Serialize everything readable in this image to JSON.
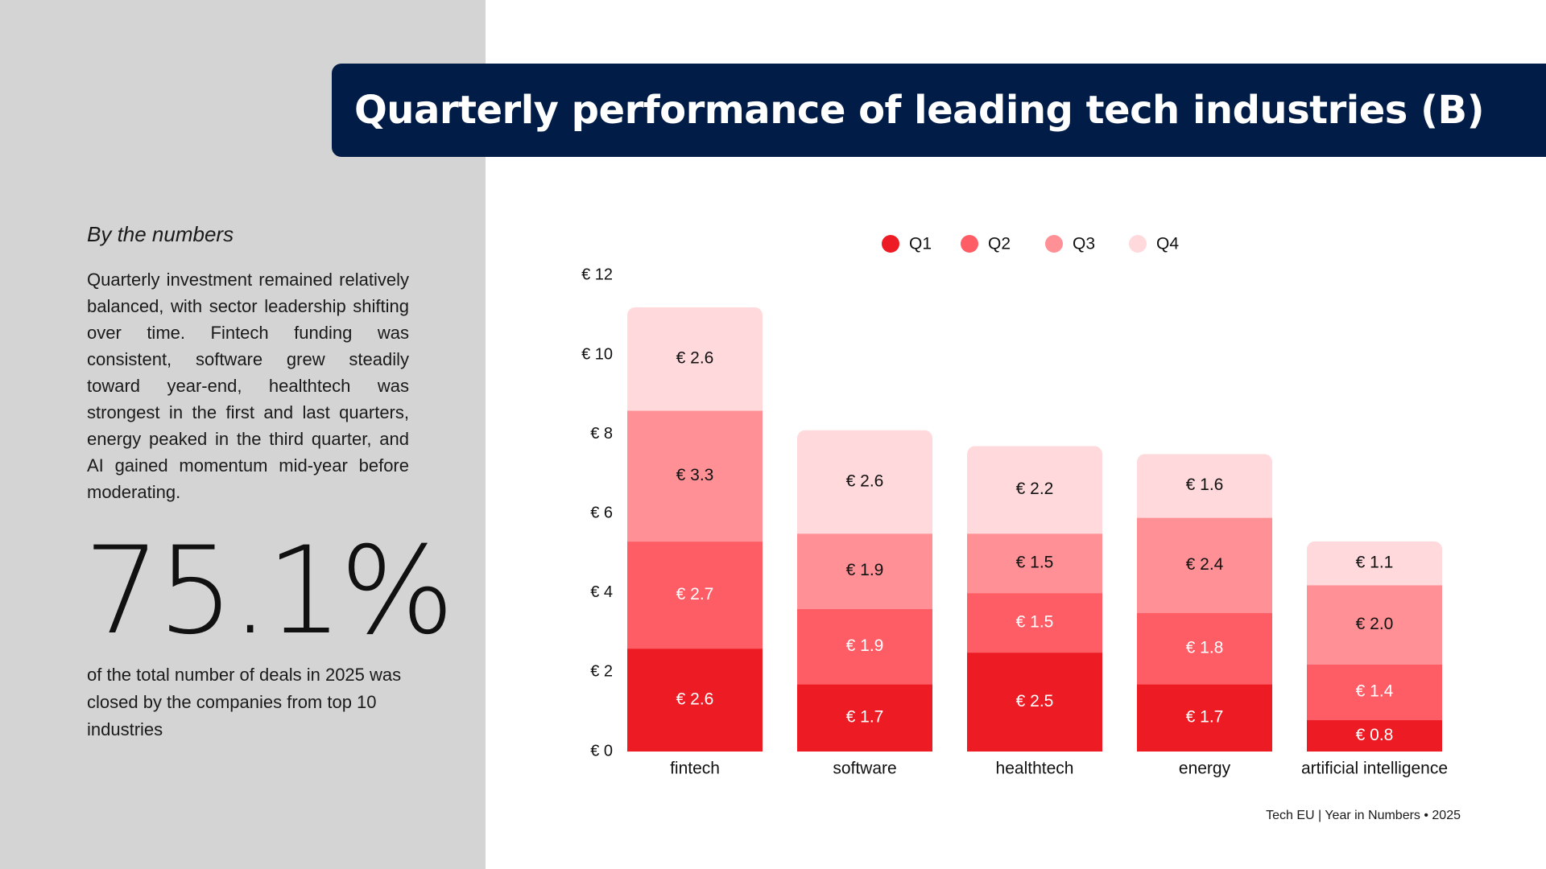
{
  "title": "Quarterly performance of leading tech industries (B)",
  "sidebar": {
    "subheading": "By the numbers",
    "body": "Quarterly investment remained relatively balanced, with sector leadership shifting over time. Fintech funding was consistent, software grew steadily toward year-end, healthtech was strongest in the first and last quarters, energy peaked in the third quarter, and AI gained momentum mid-year before moderating.",
    "stat_value": "75.1%",
    "stat_caption": "of the total number of deals in 2025 was closed by the companies from top 10 industries"
  },
  "footer": "Tech EU | Year in Numbers • 2025",
  "colors": {
    "Q1": "#ed1c24",
    "Q2": "#ff5d65",
    "Q3": "#ff9095",
    "Q4": "#ffd9db",
    "title_bg": "#001c47",
    "left_panel": "#d4d4d4"
  },
  "chart_data": {
    "type": "bar",
    "stacked": true,
    "title": "Quarterly performance of leading tech industries (B)",
    "categories": [
      "fintech",
      "software",
      "healthtech",
      "energy",
      "artificial intelligence"
    ],
    "series": [
      {
        "name": "Q1",
        "values": [
          2.6,
          1.7,
          2.5,
          1.7,
          0.8
        ],
        "labels": [
          "€ 2.6",
          "€ 1.7",
          "€ 2.5",
          "€ 1.7",
          "€ 0.8"
        ]
      },
      {
        "name": "Q2",
        "values": [
          2.7,
          1.9,
          1.5,
          1.8,
          1.4
        ],
        "labels": [
          "€ 2.7",
          "€ 1.9",
          "€ 1.5",
          "€ 1.8",
          "€ 1.4"
        ]
      },
      {
        "name": "Q3",
        "values": [
          3.3,
          1.9,
          1.5,
          2.4,
          2.0
        ],
        "labels": [
          "€ 3.3",
          "€ 1.9",
          "€ 1.5",
          "€ 2.4",
          "€ 2.0"
        ]
      },
      {
        "name": "Q4",
        "values": [
          2.6,
          2.6,
          2.2,
          1.6,
          1.1
        ],
        "labels": [
          "€ 2.6",
          "€ 2.6",
          "€ 2.2",
          "€ 1.6",
          "€ 1.1"
        ]
      }
    ],
    "yticks": [
      0,
      2,
      4,
      6,
      8,
      10,
      12
    ],
    "ytick_labels": [
      "€ 0",
      "€ 2",
      "€ 4",
      "€ 6",
      "€ 8",
      "€ 10",
      "€ 12"
    ],
    "ylim": [
      0,
      12
    ],
    "xlabel": "",
    "ylabel": "",
    "legend": "top-center",
    "grid": false
  }
}
